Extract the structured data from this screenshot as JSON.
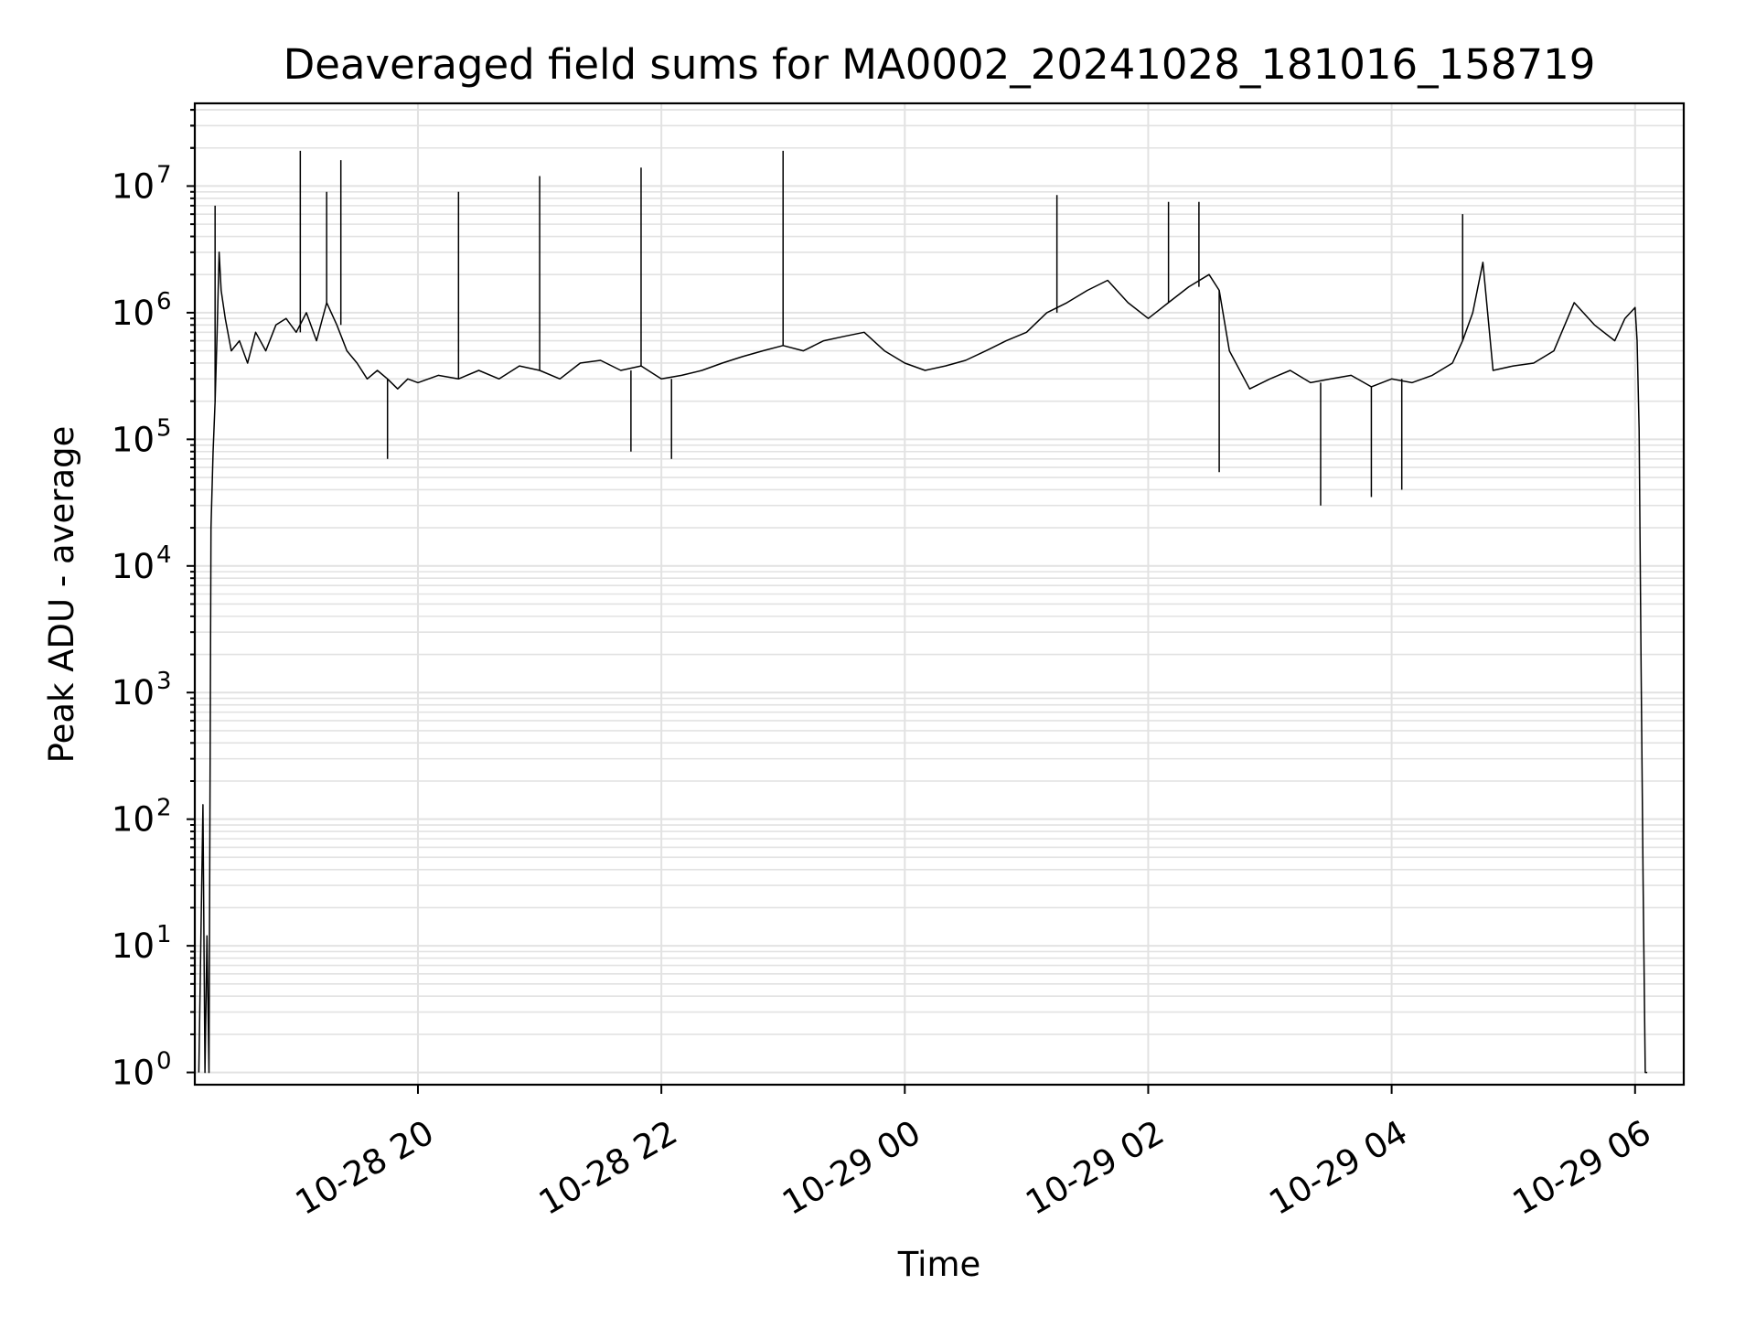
{
  "chart_data": {
    "type": "line",
    "title": "Deaveraged field sums for MA0002_20241028_181016_158719",
    "xlabel": "Time",
    "ylabel": "Peak ADU - average",
    "yscale": "log",
    "grid": true,
    "xlim": [
      "2024-10-28 18:10",
      "2024-10-29 06:24"
    ],
    "ylim": [
      0.8,
      45000000
    ],
    "x_ticks": [
      {
        "label": "10-28 20",
        "t": "2024-10-28 20:00"
      },
      {
        "label": "10-28 22",
        "t": "2024-10-28 22:00"
      },
      {
        "label": "10-29 00",
        "t": "2024-10-29 00:00"
      },
      {
        "label": "10-29 02",
        "t": "2024-10-29 02:00"
      },
      {
        "label": "10-29 04",
        "t": "2024-10-29 04:00"
      },
      {
        "label": "10-29 06",
        "t": "2024-10-29 06:00"
      }
    ],
    "y_ticks": [
      {
        "base": "10",
        "exp": "0",
        "value": 1
      },
      {
        "base": "10",
        "exp": "1",
        "value": 10
      },
      {
        "base": "10",
        "exp": "2",
        "value": 100
      },
      {
        "base": "10",
        "exp": "3",
        "value": 1000
      },
      {
        "base": "10",
        "exp": "4",
        "value": 10000
      },
      {
        "base": "10",
        "exp": "5",
        "value": 100000
      },
      {
        "base": "10",
        "exp": "6",
        "value": 1000000
      },
      {
        "base": "10",
        "exp": "7",
        "value": 10000000
      }
    ],
    "series_color": "#000000",
    "x": [
      "2024-10-28 18:12",
      "2024-10-28 18:14",
      "2024-10-28 18:15",
      "2024-10-28 18:16",
      "2024-10-28 18:17",
      "2024-10-28 18:18",
      "2024-10-28 18:19",
      "2024-10-28 18:20",
      "2024-10-28 18:21",
      "2024-10-28 18:22",
      "2024-10-28 18:23",
      "2024-10-28 18:25",
      "2024-10-28 18:28",
      "2024-10-28 18:32",
      "2024-10-28 18:36",
      "2024-10-28 18:40",
      "2024-10-28 18:45",
      "2024-10-28 18:50",
      "2024-10-28 18:55",
      "2024-10-28 19:00",
      "2024-10-28 19:05",
      "2024-10-28 19:10",
      "2024-10-28 19:15",
      "2024-10-28 19:20",
      "2024-10-28 19:25",
      "2024-10-28 19:30",
      "2024-10-28 19:35",
      "2024-10-28 19:40",
      "2024-10-28 19:45",
      "2024-10-28 19:50",
      "2024-10-28 19:55",
      "2024-10-28 20:00",
      "2024-10-28 20:10",
      "2024-10-28 20:20",
      "2024-10-28 20:30",
      "2024-10-28 20:40",
      "2024-10-28 20:50",
      "2024-10-28 21:00",
      "2024-10-28 21:10",
      "2024-10-28 21:20",
      "2024-10-28 21:30",
      "2024-10-28 21:40",
      "2024-10-28 21:50",
      "2024-10-28 22:00",
      "2024-10-28 22:10",
      "2024-10-28 22:20",
      "2024-10-28 22:30",
      "2024-10-28 22:40",
      "2024-10-28 22:50",
      "2024-10-28 23:00",
      "2024-10-28 23:10",
      "2024-10-28 23:20",
      "2024-10-28 23:30",
      "2024-10-28 23:40",
      "2024-10-28 23:50",
      "2024-10-29 00:00",
      "2024-10-29 00:10",
      "2024-10-29 00:20",
      "2024-10-29 00:30",
      "2024-10-29 00:40",
      "2024-10-29 00:50",
      "2024-10-29 01:00",
      "2024-10-29 01:10",
      "2024-10-29 01:20",
      "2024-10-29 01:30",
      "2024-10-29 01:40",
      "2024-10-29 01:50",
      "2024-10-29 02:00",
      "2024-10-29 02:10",
      "2024-10-29 02:20",
      "2024-10-29 02:30",
      "2024-10-29 02:35",
      "2024-10-29 02:40",
      "2024-10-29 02:50",
      "2024-10-29 03:00",
      "2024-10-29 03:10",
      "2024-10-29 03:20",
      "2024-10-29 03:30",
      "2024-10-29 03:40",
      "2024-10-29 03:50",
      "2024-10-29 04:00",
      "2024-10-29 04:10",
      "2024-10-29 04:20",
      "2024-10-29 04:30",
      "2024-10-29 04:35",
      "2024-10-29 04:40",
      "2024-10-29 04:45",
      "2024-10-29 04:50",
      "2024-10-29 05:00",
      "2024-10-29 05:10",
      "2024-10-29 05:20",
      "2024-10-29 05:30",
      "2024-10-29 05:40",
      "2024-10-29 05:50",
      "2024-10-29 05:55",
      "2024-10-29 06:00",
      "2024-10-29 06:01",
      "2024-10-29 06:02",
      "2024-10-29 06:03",
      "2024-10-29 06:04",
      "2024-10-29 06:05",
      "2024-10-29 06:06"
    ],
    "y": [
      1,
      130,
      1,
      12,
      1,
      20000,
      80000,
      200000,
      700000,
      3000000,
      1500000,
      900000,
      500000,
      600000,
      400000,
      700000,
      500000,
      800000,
      900000,
      700000,
      1000000,
      600000,
      1200000,
      800000,
      500000,
      400000,
      300000,
      350000,
      300000,
      250000,
      300000,
      280000,
      320000,
      300000,
      350000,
      300000,
      380000,
      350000,
      300000,
      400000,
      420000,
      350000,
      380000,
      300000,
      320000,
      350000,
      400000,
      450000,
      500000,
      550000,
      500000,
      600000,
      650000,
      700000,
      500000,
      400000,
      350000,
      380000,
      420000,
      500000,
      600000,
      700000,
      1000000,
      1200000,
      1500000,
      1800000,
      1200000,
      900000,
      1200000,
      1600000,
      2000000,
      1500000,
      500000,
      250000,
      300000,
      350000,
      280000,
      300000,
      320000,
      260000,
      300000,
      280000,
      320000,
      400000,
      600000,
      1000000,
      2500000,
      350000,
      380000,
      400000,
      500000,
      1200000,
      800000,
      600000,
      900000,
      1100000,
      600000,
      120000,
      1500,
      30,
      1,
      1
    ],
    "spikes": [
      {
        "t": "2024-10-28 18:20",
        "v": 7000000
      },
      {
        "t": "2024-10-28 19:02",
        "v": 19000000
      },
      {
        "t": "2024-10-28 19:15",
        "v": 9000000
      },
      {
        "t": "2024-10-28 19:22",
        "v": 16000000
      },
      {
        "t": "2024-10-28 20:20",
        "v": 9000000
      },
      {
        "t": "2024-10-28 21:00",
        "v": 12000000
      },
      {
        "t": "2024-10-28 21:50",
        "v": 14000000
      },
      {
        "t": "2024-10-28 23:00",
        "v": 19000000
      },
      {
        "t": "2024-10-29 01:15",
        "v": 8500000
      },
      {
        "t": "2024-10-29 02:10",
        "v": 7500000
      },
      {
        "t": "2024-10-29 02:25",
        "v": 7500000
      },
      {
        "t": "2024-10-29 04:35",
        "v": 6000000
      },
      {
        "t": "2024-10-28 19:45",
        "v": 70000
      },
      {
        "t": "2024-10-28 21:45",
        "v": 80000
      },
      {
        "t": "2024-10-28 22:05",
        "v": 70000
      },
      {
        "t": "2024-10-29 02:35",
        "v": 55000
      },
      {
        "t": "2024-10-29 03:25",
        "v": 30000
      },
      {
        "t": "2024-10-29 03:50",
        "v": 35000
      },
      {
        "t": "2024-10-29 04:05",
        "v": 40000
      }
    ]
  }
}
